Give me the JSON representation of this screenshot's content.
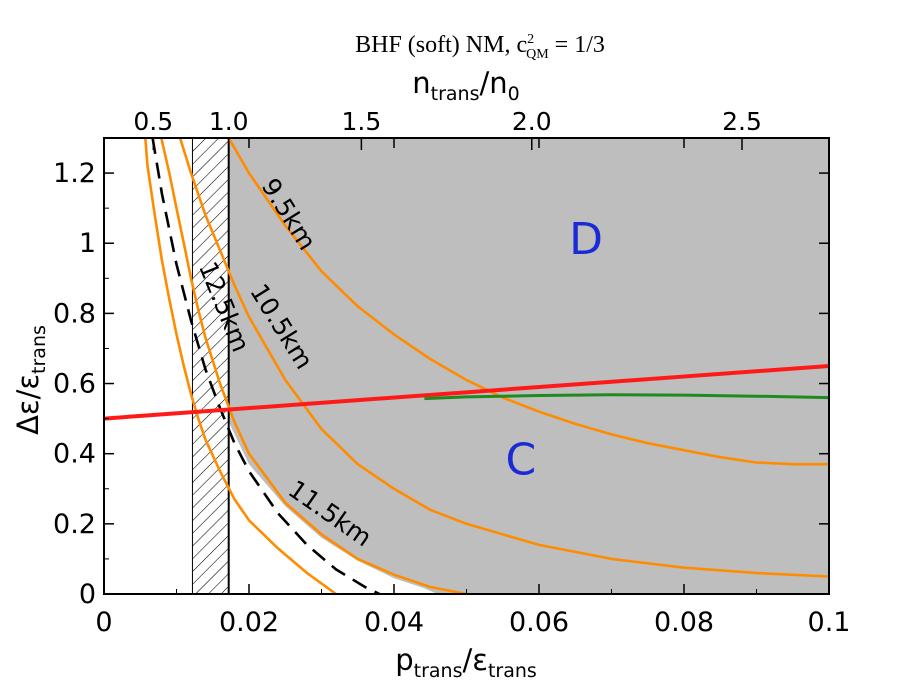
{
  "chart_data": {
    "type": "line",
    "title": "BHF (soft) NM, c",
    "title_sup": "2",
    "title_sub": "QM",
    "title_tail": " = 1/3",
    "xlabel_main": "p",
    "xlabel_sub": "trans",
    "xlabel_mid": "/ε",
    "xlabel_sub2": "trans",
    "ylabel_main": "Δε/ε",
    "ylabel_sub": "trans",
    "top_label_main": "n",
    "top_label_sub": "trans",
    "top_label_mid": "/n",
    "top_label_sub2": "0",
    "xlim": [
      0,
      0.1
    ],
    "ylim": [
      0,
      1.3
    ],
    "x_ticks": [
      0,
      0.02,
      0.04,
      0.06,
      0.08,
      0.1
    ],
    "x_tick_labels": [
      "0",
      "0.02",
      "0.04",
      "0.06",
      "0.08",
      "0.1"
    ],
    "y_ticks": [
      0,
      0.2,
      0.4,
      0.6,
      0.8,
      1.0,
      1.2
    ],
    "y_tick_labels": [
      "0",
      "0.2",
      "0.4",
      "0.6",
      "0.8",
      "1",
      "1.2"
    ],
    "top_ticks": [
      {
        "label": "0.5",
        "x": 0.0068
      },
      {
        "label": "1.0",
        "x": 0.0172
      },
      {
        "label": "1.5",
        "x": 0.0355
      },
      {
        "label": "2.0",
        "x": 0.059
      },
      {
        "label": "2.5",
        "x": 0.088
      }
    ],
    "regions": [
      {
        "label": "D",
        "x": 0.0665,
        "y": 0.97,
        "color": "#1a2bd6"
      },
      {
        "label": "C",
        "x": 0.0575,
        "y": 0.34,
        "color": "#1a2bd6"
      }
    ],
    "shaded_region": {
      "color": "#bebebe",
      "boundary": [
        [
          0.0172,
          1.3
        ],
        [
          0.0172,
          0.49
        ],
        [
          0.02,
          0.37
        ],
        [
          0.025,
          0.25
        ],
        [
          0.03,
          0.16
        ],
        [
          0.035,
          0.095
        ],
        [
          0.04,
          0.045
        ],
        [
          0.044,
          0.018
        ],
        [
          0.046,
          0.0
        ],
        [
          0.1,
          0.0
        ],
        [
          0.1,
          1.3
        ]
      ]
    },
    "hatched_band": {
      "x0": 0.0122,
      "x1": 0.0172
    },
    "series": [
      {
        "label": "9.5km",
        "color": "#ff8c00",
        "style": "solid",
        "label_pos": {
          "x": 0.0245,
          "y": 1.07,
          "angle": 58
        },
        "points": [
          [
            0.0172,
            1.3
          ],
          [
            0.02,
            1.2
          ],
          [
            0.025,
            1.05
          ],
          [
            0.03,
            0.92
          ],
          [
            0.035,
            0.82
          ],
          [
            0.04,
            0.74
          ],
          [
            0.045,
            0.67
          ],
          [
            0.05,
            0.61
          ],
          [
            0.055,
            0.56
          ],
          [
            0.06,
            0.52
          ],
          [
            0.065,
            0.485
          ],
          [
            0.07,
            0.455
          ],
          [
            0.075,
            0.43
          ],
          [
            0.08,
            0.41
          ],
          [
            0.085,
            0.39
          ],
          [
            0.09,
            0.375
          ],
          [
            0.095,
            0.37
          ],
          [
            0.1,
            0.37
          ]
        ]
      },
      {
        "label": "10.5km",
        "color": "#ff8c00",
        "style": "solid",
        "label_pos": {
          "x": 0.0235,
          "y": 0.75,
          "angle": 58
        },
        "points": [
          [
            0.0105,
            1.3
          ],
          [
            0.012,
            1.2
          ],
          [
            0.014,
            1.08
          ],
          [
            0.016,
            0.98
          ],
          [
            0.018,
            0.88
          ],
          [
            0.02,
            0.79
          ],
          [
            0.025,
            0.61
          ],
          [
            0.03,
            0.47
          ],
          [
            0.035,
            0.37
          ],
          [
            0.04,
            0.3
          ],
          [
            0.045,
            0.24
          ],
          [
            0.05,
            0.2
          ],
          [
            0.06,
            0.14
          ],
          [
            0.07,
            0.1
          ],
          [
            0.08,
            0.075
          ],
          [
            0.09,
            0.06
          ],
          [
            0.1,
            0.05
          ]
        ]
      },
      {
        "label": "11.5km",
        "color": "#ff8c00",
        "style": "solid",
        "label_pos": {
          "x": 0.0305,
          "y": 0.21,
          "angle": 35
        },
        "points": [
          [
            0.0079,
            1.3
          ],
          [
            0.009,
            1.2
          ],
          [
            0.01,
            1.1
          ],
          [
            0.011,
            1.0
          ],
          [
            0.012,
            0.9
          ],
          [
            0.013,
            0.81
          ],
          [
            0.014,
            0.73
          ],
          [
            0.016,
            0.6
          ],
          [
            0.018,
            0.49
          ],
          [
            0.02,
            0.4
          ],
          [
            0.025,
            0.26
          ],
          [
            0.03,
            0.17
          ],
          [
            0.035,
            0.1
          ],
          [
            0.04,
            0.055
          ],
          [
            0.045,
            0.02
          ],
          [
            0.05,
            0.0
          ]
        ]
      },
      {
        "label": "12.5km",
        "color": "#ff8c00",
        "style": "solid",
        "label_pos": {
          "x": 0.0155,
          "y": 0.81,
          "angle": 68
        },
        "points": [
          [
            0.0057,
            1.3
          ],
          [
            0.006,
            1.22
          ],
          [
            0.007,
            1.08
          ],
          [
            0.008,
            0.95
          ],
          [
            0.009,
            0.84
          ],
          [
            0.01,
            0.74
          ],
          [
            0.011,
            0.65
          ],
          [
            0.012,
            0.57
          ],
          [
            0.013,
            0.5
          ],
          [
            0.014,
            0.44
          ],
          [
            0.016,
            0.35
          ],
          [
            0.018,
            0.27
          ],
          [
            0.02,
            0.21
          ],
          [
            0.024,
            0.13
          ],
          [
            0.028,
            0.06
          ],
          [
            0.032,
            0.0
          ]
        ]
      },
      {
        "label": "",
        "color": "#000000",
        "style": "dashed",
        "points": [
          [
            0.0067,
            1.3
          ],
          [
            0.008,
            1.14
          ],
          [
            0.01,
            0.94
          ],
          [
            0.012,
            0.78
          ],
          [
            0.014,
            0.64
          ],
          [
            0.016,
            0.53
          ],
          [
            0.018,
            0.43
          ],
          [
            0.02,
            0.35
          ],
          [
            0.024,
            0.23
          ],
          [
            0.028,
            0.14
          ],
          [
            0.032,
            0.07
          ],
          [
            0.036,
            0.02
          ],
          [
            0.038,
            0.0
          ]
        ]
      },
      {
        "label": "",
        "color": "#ff1a1a",
        "style": "solid",
        "width": 4,
        "points": [
          [
            0.0,
            0.5
          ],
          [
            0.1,
            0.65
          ]
        ]
      },
      {
        "label": "",
        "color": "#1f8a1f",
        "style": "solid",
        "width": 3,
        "points": [
          [
            0.0442,
            0.557
          ],
          [
            0.05,
            0.562
          ],
          [
            0.06,
            0.566
          ],
          [
            0.07,
            0.568
          ],
          [
            0.08,
            0.567
          ],
          [
            0.09,
            0.564
          ],
          [
            0.1,
            0.56
          ]
        ]
      }
    ]
  }
}
